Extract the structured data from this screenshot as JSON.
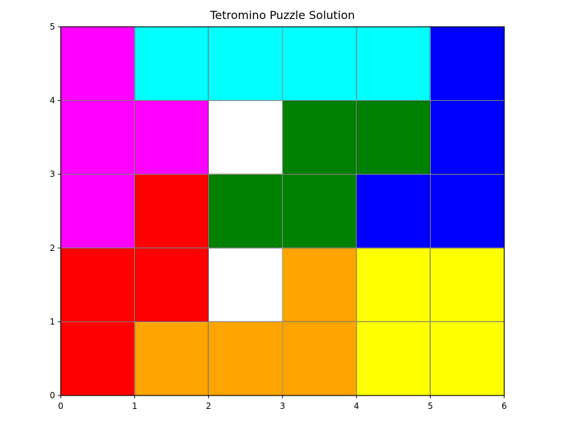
{
  "chart_data": {
    "type": "heatmap",
    "title": "Tetromino Puzzle Solution",
    "xlabel": "",
    "ylabel": "",
    "xlim": [
      0,
      6
    ],
    "ylim": [
      0,
      5
    ],
    "xticks": [
      "0",
      "1",
      "2",
      "3",
      "4",
      "5",
      "6"
    ],
    "yticks": [
      "0",
      "1",
      "2",
      "3",
      "4",
      "5"
    ],
    "grid": true,
    "cells": [
      {
        "x": 0,
        "y": 4,
        "color": "#ff00ff"
      },
      {
        "x": 1,
        "y": 4,
        "color": "#00ffff"
      },
      {
        "x": 2,
        "y": 4,
        "color": "#00ffff"
      },
      {
        "x": 3,
        "y": 4,
        "color": "#00ffff"
      },
      {
        "x": 4,
        "y": 4,
        "color": "#00ffff"
      },
      {
        "x": 5,
        "y": 4,
        "color": "#0000ff"
      },
      {
        "x": 0,
        "y": 3,
        "color": "#ff00ff"
      },
      {
        "x": 1,
        "y": 3,
        "color": "#ff00ff"
      },
      {
        "x": 2,
        "y": 3,
        "color": "#ffffff"
      },
      {
        "x": 3,
        "y": 3,
        "color": "#008000"
      },
      {
        "x": 4,
        "y": 3,
        "color": "#008000"
      },
      {
        "x": 5,
        "y": 3,
        "color": "#0000ff"
      },
      {
        "x": 0,
        "y": 2,
        "color": "#ff00ff"
      },
      {
        "x": 1,
        "y": 2,
        "color": "#ff0000"
      },
      {
        "x": 2,
        "y": 2,
        "color": "#008000"
      },
      {
        "x": 3,
        "y": 2,
        "color": "#008000"
      },
      {
        "x": 4,
        "y": 2,
        "color": "#0000ff"
      },
      {
        "x": 5,
        "y": 2,
        "color": "#0000ff"
      },
      {
        "x": 0,
        "y": 1,
        "color": "#ff0000"
      },
      {
        "x": 1,
        "y": 1,
        "color": "#ff0000"
      },
      {
        "x": 2,
        "y": 1,
        "color": "#ffffff"
      },
      {
        "x": 3,
        "y": 1,
        "color": "#ffa500"
      },
      {
        "x": 4,
        "y": 1,
        "color": "#ffff00"
      },
      {
        "x": 5,
        "y": 1,
        "color": "#ffff00"
      },
      {
        "x": 0,
        "y": 0,
        "color": "#ff0000"
      },
      {
        "x": 1,
        "y": 0,
        "color": "#ffa500"
      },
      {
        "x": 2,
        "y": 0,
        "color": "#ffa500"
      },
      {
        "x": 3,
        "y": 0,
        "color": "#ffa500"
      },
      {
        "x": 4,
        "y": 0,
        "color": "#ffff00"
      },
      {
        "x": 5,
        "y": 0,
        "color": "#ffff00"
      }
    ],
    "colors": {
      "magenta": "#ff00ff",
      "cyan": "#00ffff",
      "blue": "#0000ff",
      "green": "#008000",
      "red": "#ff0000",
      "orange": "#ffa500",
      "yellow": "#ffff00",
      "empty": "#ffffff",
      "grid": "#b0b0b0"
    }
  }
}
